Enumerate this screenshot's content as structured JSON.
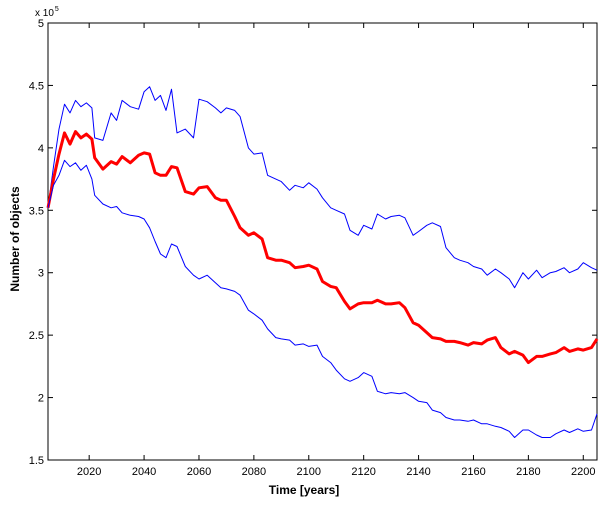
{
  "chart_data": {
    "type": "line",
    "title": "",
    "xlabel": "Time [years]",
    "ylabel": "Number of objects",
    "y_multiplier_label": "x 10",
    "y_multiplier_exponent": "5",
    "xlim": [
      2005,
      2205
    ],
    "ylim": [
      1.5,
      5
    ],
    "xticks": [
      2020,
      2040,
      2060,
      2080,
      2100,
      2120,
      2140,
      2160,
      2180,
      2200
    ],
    "yticks": [
      1.5,
      2,
      2.5,
      3,
      3.5,
      4,
      4.5,
      5
    ],
    "ytick_labels": [
      "1.5",
      "2",
      "2.5",
      "3",
      "3.5",
      "4",
      "4.5",
      "5"
    ],
    "grid": false,
    "legend": "none",
    "series": [
      {
        "color": "#0000ff",
        "line_width": "thin",
        "x": [
          2005,
          2007,
          2009,
          2011,
          2013,
          2015,
          2017,
          2019,
          2021,
          2022,
          2025,
          2028,
          2030,
          2032,
          2035,
          2038,
          2040,
          2042,
          2044,
          2046,
          2048,
          2050,
          2052,
          2055,
          2058,
          2060,
          2063,
          2066,
          2068,
          2070,
          2073,
          2075,
          2078,
          2080,
          2083,
          2085,
          2088,
          2090,
          2093,
          2095,
          2098,
          2100,
          2103,
          2105,
          2108,
          2110,
          2113,
          2115,
          2118,
          2120,
          2123,
          2125,
          2128,
          2130,
          2133,
          2135,
          2138,
          2140,
          2143,
          2145,
          2148,
          2150,
          2153,
          2155,
          2158,
          2160,
          2163,
          2165,
          2168,
          2170,
          2173,
          2175,
          2178,
          2180,
          2183,
          2185,
          2188,
          2190,
          2193,
          2195,
          2198,
          2200,
          2203,
          2205
        ],
        "y": [
          3.52,
          3.85,
          4.15,
          4.35,
          4.28,
          4.38,
          4.33,
          4.36,
          4.32,
          4.08,
          4.06,
          4.28,
          4.22,
          4.38,
          4.33,
          4.31,
          4.45,
          4.49,
          4.38,
          4.42,
          4.3,
          4.47,
          4.12,
          4.15,
          4.08,
          4.39,
          4.37,
          4.32,
          4.28,
          4.32,
          4.3,
          4.25,
          4.0,
          3.95,
          3.96,
          3.78,
          3.75,
          3.73,
          3.66,
          3.7,
          3.68,
          3.72,
          3.67,
          3.6,
          3.52,
          3.5,
          3.47,
          3.34,
          3.3,
          3.38,
          3.35,
          3.47,
          3.43,
          3.45,
          3.46,
          3.44,
          3.3,
          3.33,
          3.38,
          3.4,
          3.37,
          3.2,
          3.12,
          3.1,
          3.08,
          3.05,
          3.03,
          2.98,
          3.03,
          3.0,
          2.95,
          2.88,
          3.0,
          2.95,
          3.02,
          2.96,
          3.0,
          3.01,
          3.04,
          3.0,
          3.03,
          3.08,
          3.04,
          3.02
        ]
      },
      {
        "color": "#ff0000",
        "line_width": "thick",
        "x": [
          2005,
          2007,
          2009,
          2011,
          2013,
          2015,
          2017,
          2019,
          2021,
          2022,
          2025,
          2028,
          2030,
          2032,
          2035,
          2038,
          2040,
          2042,
          2044,
          2046,
          2048,
          2050,
          2052,
          2055,
          2058,
          2060,
          2063,
          2066,
          2068,
          2070,
          2073,
          2075,
          2078,
          2080,
          2083,
          2085,
          2088,
          2090,
          2093,
          2095,
          2098,
          2100,
          2103,
          2105,
          2108,
          2110,
          2113,
          2115,
          2118,
          2120,
          2123,
          2125,
          2128,
          2130,
          2133,
          2135,
          2138,
          2140,
          2143,
          2145,
          2148,
          2150,
          2153,
          2155,
          2158,
          2160,
          2163,
          2165,
          2168,
          2170,
          2173,
          2175,
          2178,
          2180,
          2183,
          2185,
          2188,
          2190,
          2193,
          2195,
          2198,
          2200,
          2203,
          2205
        ],
        "y": [
          3.52,
          3.75,
          3.95,
          4.12,
          4.03,
          4.13,
          4.08,
          4.11,
          4.07,
          3.92,
          3.83,
          3.89,
          3.87,
          3.93,
          3.88,
          3.94,
          3.96,
          3.95,
          3.8,
          3.78,
          3.78,
          3.85,
          3.84,
          3.65,
          3.63,
          3.68,
          3.69,
          3.6,
          3.58,
          3.58,
          3.45,
          3.36,
          3.3,
          3.32,
          3.27,
          3.12,
          3.1,
          3.1,
          3.08,
          3.04,
          3.05,
          3.06,
          3.03,
          2.93,
          2.89,
          2.88,
          2.77,
          2.71,
          2.75,
          2.76,
          2.76,
          2.78,
          2.75,
          2.75,
          2.76,
          2.72,
          2.6,
          2.58,
          2.52,
          2.48,
          2.47,
          2.45,
          2.45,
          2.44,
          2.42,
          2.44,
          2.43,
          2.46,
          2.48,
          2.4,
          2.35,
          2.37,
          2.34,
          2.28,
          2.33,
          2.33,
          2.35,
          2.36,
          2.4,
          2.37,
          2.39,
          2.38,
          2.4,
          2.47
        ]
      },
      {
        "color": "#0000ff",
        "line_width": "thin",
        "x": [
          2005,
          2007,
          2009,
          2011,
          2013,
          2015,
          2017,
          2019,
          2021,
          2022,
          2025,
          2028,
          2030,
          2032,
          2035,
          2038,
          2040,
          2042,
          2044,
          2046,
          2048,
          2050,
          2052,
          2055,
          2058,
          2060,
          2063,
          2066,
          2068,
          2070,
          2073,
          2075,
          2078,
          2080,
          2083,
          2085,
          2088,
          2090,
          2093,
          2095,
          2098,
          2100,
          2103,
          2105,
          2108,
          2110,
          2113,
          2115,
          2118,
          2120,
          2123,
          2125,
          2128,
          2130,
          2133,
          2135,
          2138,
          2140,
          2143,
          2145,
          2148,
          2150,
          2153,
          2155,
          2158,
          2160,
          2163,
          2165,
          2168,
          2170,
          2173,
          2175,
          2178,
          2180,
          2183,
          2185,
          2188,
          2190,
          2193,
          2195,
          2198,
          2200,
          2203,
          2205
        ],
        "y": [
          3.52,
          3.7,
          3.78,
          3.9,
          3.85,
          3.88,
          3.82,
          3.86,
          3.75,
          3.62,
          3.55,
          3.52,
          3.53,
          3.48,
          3.46,
          3.45,
          3.43,
          3.36,
          3.25,
          3.15,
          3.12,
          3.23,
          3.21,
          3.05,
          2.98,
          2.95,
          2.98,
          2.92,
          2.88,
          2.87,
          2.85,
          2.82,
          2.7,
          2.67,
          2.62,
          2.55,
          2.48,
          2.47,
          2.46,
          2.42,
          2.43,
          2.41,
          2.42,
          2.33,
          2.28,
          2.22,
          2.15,
          2.13,
          2.16,
          2.2,
          2.17,
          2.05,
          2.03,
          2.04,
          2.03,
          2.04,
          2.0,
          1.97,
          1.96,
          1.9,
          1.88,
          1.84,
          1.82,
          1.82,
          1.81,
          1.82,
          1.79,
          1.79,
          1.77,
          1.76,
          1.73,
          1.68,
          1.74,
          1.74,
          1.7,
          1.68,
          1.68,
          1.71,
          1.74,
          1.72,
          1.75,
          1.73,
          1.74,
          1.87
        ]
      }
    ]
  }
}
